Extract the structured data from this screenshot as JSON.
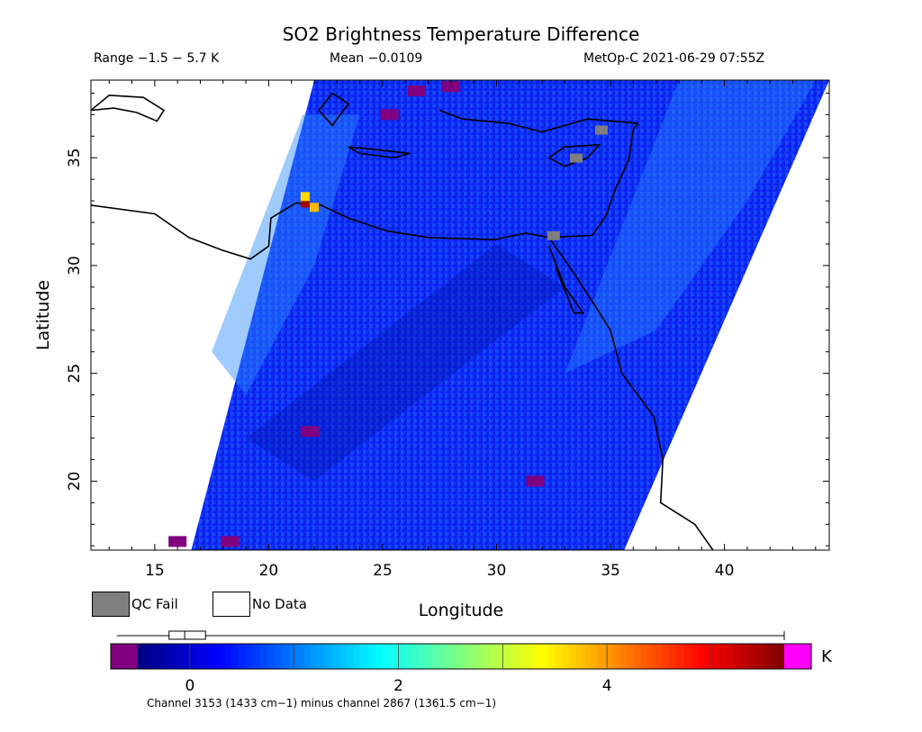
{
  "header": {
    "title": "SO2 Brightness Temperature Difference",
    "range": "Range −1.5 − 5.7 K",
    "mean": "Mean −0.0109",
    "satellite_time": "MetOp-C 2021-06-29 07:55Z"
  },
  "legend": {
    "qc_fail_label": "QC Fail",
    "no_data_label": "No Data",
    "qc_fail_color": "#7f7f7f",
    "no_data_color": "#ffffff"
  },
  "colorbar": {
    "unit": "K",
    "ticks": [
      "0",
      "2",
      "4"
    ],
    "tick_values": [
      0,
      2,
      4
    ],
    "min": -0.5,
    "max": 5.7,
    "under_color": "#800080",
    "over_color": "#ff00ff",
    "stops": [
      "#000080",
      "#0000ff",
      "#0080ff",
      "#00ffff",
      "#80ff80",
      "#ffff00",
      "#ff8000",
      "#ff0000",
      "#800000"
    ],
    "box_summary": {
      "q1": -0.2,
      "median": -0.05,
      "q3": 0.15,
      "whisker_low": -0.7,
      "whisker_high": 5.7
    }
  },
  "footnote": "Channel 3153 (1433 cm−1) minus channel 2867 (1361.5 cm−1)",
  "chart_data": {
    "type": "heatmap",
    "title": "SO2 Brightness Temperature Difference",
    "xlabel": "Longitude",
    "ylabel": "Latitude",
    "xlim": [
      12.2,
      44.6
    ],
    "ylim": [
      16.8,
      38.6
    ],
    "xticks": [
      15,
      20,
      25,
      30,
      35,
      40
    ],
    "yticks": [
      20,
      25,
      30,
      35
    ],
    "grid": false,
    "swath_edges": {
      "west": [
        [
          16.6,
          16.8
        ],
        [
          22.0,
          38.6
        ]
      ],
      "east": [
        [
          35.6,
          16.8
        ],
        [
          44.6,
          38.6
        ]
      ]
    },
    "background_value_K": 0.0,
    "hotspots": [
      {
        "lon": 21.6,
        "lat": 32.9,
        "value_K": 5.5
      },
      {
        "lon": 22.0,
        "lat": 32.7,
        "value_K": 3.8
      },
      {
        "lon": 21.6,
        "lat": 33.2,
        "value_K": 3.6
      }
    ],
    "qc_fail_regions": [
      {
        "lon": 34.6,
        "lat": 36.2
      },
      {
        "lon": 33.5,
        "lat": 34.9
      },
      {
        "lon": 32.5,
        "lat": 31.3
      }
    ],
    "summary": {
      "min_K": -1.5,
      "max_K": 5.7,
      "mean_K": -0.0109
    }
  }
}
